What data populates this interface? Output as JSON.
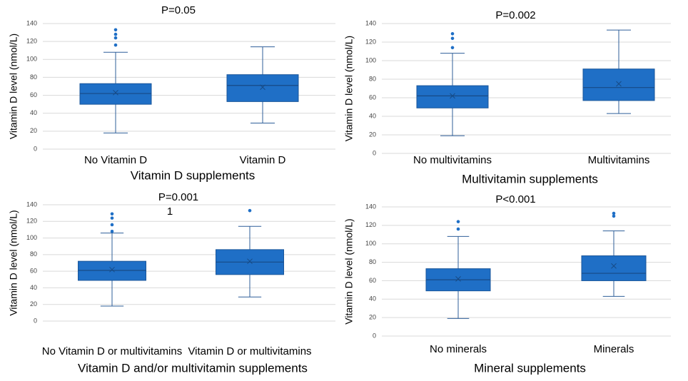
{
  "chart_data": [
    {
      "type": "box",
      "title": "P=0.05",
      "x_label": "Vitamin D supplements",
      "y_label": "Vitamin D level (nmol/L)",
      "categories": [
        "No Vitamin D",
        "Vitamin D"
      ],
      "color": "#1f6fc6",
      "boxes": [
        {
          "min": 18,
          "q1": 50,
          "median": 62,
          "q3": 73,
          "max": 108,
          "mean": 63,
          "outliers": [
            116,
            124,
            128,
            133
          ]
        },
        {
          "min": 29,
          "q1": 53,
          "median": 71,
          "q3": 83,
          "max": 114,
          "mean": 69,
          "outliers": []
        }
      ],
      "ylim": [
        0,
        140
      ],
      "yticks": [
        0,
        20,
        40,
        60,
        80,
        100,
        120,
        140
      ],
      "grid": true
    },
    {
      "type": "box",
      "title": "P=0.002",
      "x_label": "Multivitamin supplements",
      "y_label": "Vitamin D level (nmol/L)",
      "categories": [
        "No multivitamins",
        "Multivitamins"
      ],
      "color": "#1f6fc6",
      "boxes": [
        {
          "min": 19,
          "q1": 49,
          "median": 62,
          "q3": 73,
          "max": 108,
          "mean": 62,
          "outliers": [
            114,
            124,
            129
          ]
        },
        {
          "min": 43,
          "q1": 57,
          "median": 71,
          "q3": 91,
          "max": 133,
          "mean": 75,
          "outliers": []
        }
      ],
      "ylim": [
        0,
        140
      ],
      "yticks": [
        0,
        20,
        40,
        60,
        80,
        100,
        120,
        140
      ],
      "grid": true
    },
    {
      "type": "box",
      "title": "P=0.001",
      "annotation": "1",
      "x_label": "Vitamin D and/or multivitamin supplements",
      "y_label": "Vitamin D level (nmol/L)",
      "categories": [
        "No Vitamin D or multivitamins",
        "Vitamin D or multivitamins"
      ],
      "color": "#1f6fc6",
      "boxes": [
        {
          "min": 18,
          "q1": 49,
          "median": 61,
          "q3": 72,
          "max": 106,
          "mean": 62,
          "outliers": [
            108,
            116,
            124,
            129
          ]
        },
        {
          "min": 29,
          "q1": 56,
          "median": 71,
          "q3": 86,
          "max": 114,
          "mean": 72,
          "outliers": [
            133
          ]
        }
      ],
      "ylim": [
        0,
        140
      ],
      "yticks": [
        0,
        20,
        40,
        60,
        80,
        100,
        120,
        140
      ],
      "grid": true
    },
    {
      "type": "box",
      "title": "P<0.001",
      "x_label": "Mineral supplements",
      "y_label": "Vitamin D level (nmol/L)",
      "categories": [
        "No minerals",
        "Minerals"
      ],
      "color": "#1f6fc6",
      "boxes": [
        {
          "min": 19,
          "q1": 49,
          "median": 61,
          "q3": 73,
          "max": 108,
          "mean": 62,
          "outliers": [
            116,
            124
          ]
        },
        {
          "min": 43,
          "q1": 60,
          "median": 68,
          "q3": 87,
          "max": 114,
          "mean": 76,
          "outliers": [
            130,
            133
          ]
        }
      ],
      "ylim": [
        0,
        140
      ],
      "yticks": [
        0,
        20,
        40,
        60,
        80,
        100,
        120,
        140
      ],
      "grid": true
    }
  ]
}
